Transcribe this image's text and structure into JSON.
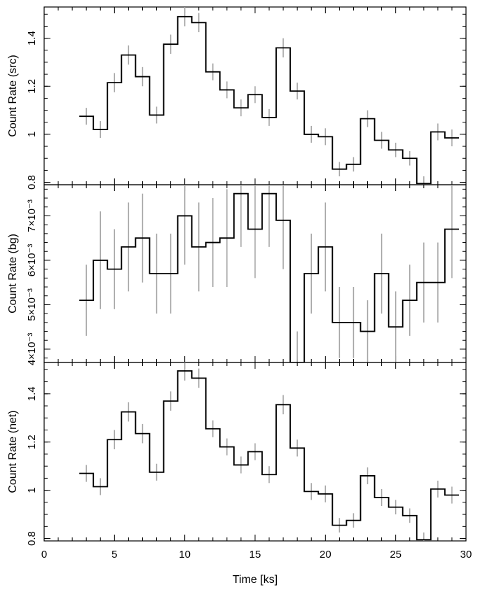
{
  "chart_data": [
    {
      "type": "line",
      "id": "src",
      "ylabel": "Count Rate (src)",
      "xlabel": "",
      "xlim": [
        0,
        30
      ],
      "ylim": [
        0.79,
        1.53
      ],
      "yticks": [
        {
          "v": 0.8,
          "label": "0.8"
        },
        {
          "v": 1.0,
          "label": "1"
        },
        {
          "v": 1.2,
          "label": "1.2"
        },
        {
          "v": 1.4,
          "label": "1.4"
        }
      ],
      "yminor": 0.05,
      "bin_edges": [
        2.5,
        3.5,
        4.5,
        5.5,
        6.5,
        7.5,
        8.5,
        9.5,
        10.5,
        11.5,
        12.5,
        13.5,
        14.5,
        15.5,
        16.5,
        17.5,
        18.5,
        19.5,
        20.5,
        21.5,
        22.5,
        23.5,
        24.5,
        25.5,
        26.5,
        27.5,
        28.5,
        29.5
      ],
      "values": [
        1.075,
        1.02,
        1.215,
        1.33,
        1.24,
        1.08,
        1.375,
        1.49,
        1.465,
        1.26,
        1.185,
        1.11,
        1.165,
        1.07,
        1.36,
        1.18,
        1.0,
        0.99,
        0.855,
        0.875,
        1.065,
        0.975,
        0.935,
        0.9,
        0.795,
        1.01,
        0.985
      ],
      "errors": [
        0.035,
        0.035,
        0.04,
        0.04,
        0.04,
        0.035,
        0.04,
        0.04,
        0.04,
        0.035,
        0.035,
        0.035,
        0.035,
        0.035,
        0.04,
        0.035,
        0.035,
        0.035,
        0.03,
        0.03,
        0.035,
        0.035,
        0.03,
        0.03,
        0.03,
        0.035,
        0.035
      ]
    },
    {
      "type": "line",
      "id": "bg",
      "ylabel": "Count Rate (bg)",
      "xlabel": "",
      "xlim": [
        0,
        30
      ],
      "ylim": [
        0.0037,
        0.0077
      ],
      "yticks": [
        {
          "v": 0.004,
          "label": "4×10⁻³"
        },
        {
          "v": 0.005,
          "label": "5×10⁻³"
        },
        {
          "v": 0.006,
          "label": "6×10⁻³"
        },
        {
          "v": 0.007,
          "label": "7×10⁻³"
        }
      ],
      "yminor": 0.0002,
      "bin_edges": [
        2.5,
        3.5,
        4.5,
        5.5,
        6.5,
        7.5,
        8.5,
        9.5,
        10.5,
        11.5,
        12.5,
        13.5,
        14.5,
        15.5,
        16.5,
        17.5,
        18.5,
        19.5,
        20.5,
        21.5,
        22.5,
        23.5,
        24.5,
        25.5,
        26.5,
        27.5,
        28.5,
        29.5
      ],
      "values": [
        0.0051,
        0.006,
        0.0058,
        0.0063,
        0.0065,
        0.0057,
        0.0057,
        0.007,
        0.0063,
        0.0064,
        0.0065,
        0.0075,
        0.0067,
        0.0075,
        0.0069,
        0.0037,
        0.0057,
        0.0063,
        0.0046,
        0.0046,
        0.0044,
        0.0057,
        0.0045,
        0.0051,
        0.0055,
        0.0055,
        0.0067
      ],
      "errors": [
        0.0008,
        0.0011,
        0.0009,
        0.001,
        0.001,
        0.0009,
        0.0009,
        0.0011,
        0.001,
        0.001,
        0.0011,
        0.0012,
        0.0011,
        0.0012,
        0.0011,
        0.0007,
        0.0009,
        0.001,
        0.0008,
        0.0008,
        0.0007,
        0.0009,
        0.0008,
        0.0008,
        0.0009,
        0.0009,
        0.0011
      ]
    },
    {
      "type": "line",
      "id": "net",
      "ylabel": "Count Rate (net)",
      "xlabel": "Time [ks]",
      "xlim": [
        0,
        30
      ],
      "ylim": [
        0.79,
        1.53
      ],
      "yticks": [
        {
          "v": 0.8,
          "label": "0.8"
        },
        {
          "v": 1.0,
          "label": "1"
        },
        {
          "v": 1.2,
          "label": "1.2"
        },
        {
          "v": 1.4,
          "label": "1.4"
        }
      ],
      "yminor": 0.05,
      "xticks": [
        {
          "v": 0,
          "label": "0"
        },
        {
          "v": 5,
          "label": "5"
        },
        {
          "v": 10,
          "label": "10"
        },
        {
          "v": 15,
          "label": "15"
        },
        {
          "v": 20,
          "label": "20"
        },
        {
          "v": 25,
          "label": "25"
        },
        {
          "v": 30,
          "label": "30"
        }
      ],
      "bin_edges": [
        2.5,
        3.5,
        4.5,
        5.5,
        6.5,
        7.5,
        8.5,
        9.5,
        10.5,
        11.5,
        12.5,
        13.5,
        14.5,
        15.5,
        16.5,
        17.5,
        18.5,
        19.5,
        20.5,
        21.5,
        22.5,
        23.5,
        24.5,
        25.5,
        26.5,
        27.5,
        28.5,
        29.5
      ],
      "values": [
        1.07,
        1.015,
        1.21,
        1.325,
        1.235,
        1.075,
        1.37,
        1.495,
        1.465,
        1.255,
        1.18,
        1.105,
        1.16,
        1.065,
        1.355,
        1.175,
        0.995,
        0.985,
        0.855,
        0.875,
        1.06,
        0.97,
        0.93,
        0.895,
        0.795,
        1.005,
        0.98
      ],
      "errors": [
        0.035,
        0.035,
        0.04,
        0.04,
        0.04,
        0.035,
        0.04,
        0.04,
        0.04,
        0.035,
        0.035,
        0.035,
        0.035,
        0.035,
        0.04,
        0.035,
        0.035,
        0.035,
        0.03,
        0.03,
        0.035,
        0.035,
        0.03,
        0.03,
        0.03,
        0.035,
        0.035
      ]
    }
  ],
  "colors": {
    "step": "#000000",
    "error_bar": "#a6a6a6",
    "frame": "#000000"
  }
}
